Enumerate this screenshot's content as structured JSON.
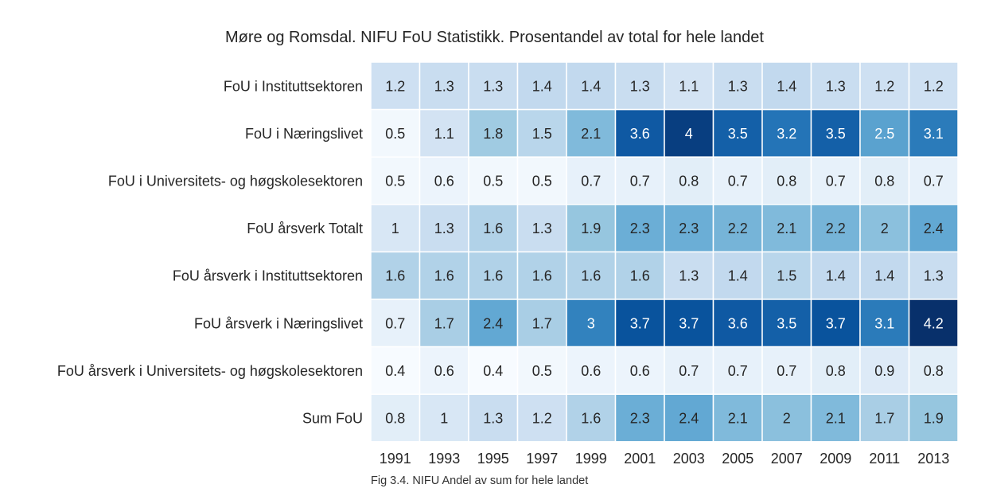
{
  "chart_data": {
    "type": "heatmap",
    "title": "Møre og Romsdal. NIFU FoU Statistikk. Prosentandel av total for hele landet",
    "caption": "Fig 3.4. NIFU Andel av sum for hele landet",
    "x": [
      "1991",
      "1993",
      "1995",
      "1997",
      "1999",
      "2001",
      "2003",
      "2005",
      "2007",
      "2009",
      "2011",
      "2013"
    ],
    "rows": [
      "FoU i Instituttsektoren",
      "FoU i Næringslivet",
      "FoU i Universitets- og høgskolesektoren",
      "FoU årsverk Totalt",
      "FoU årsverk i Instituttsektoren",
      "FoU årsverk i Næringslivet",
      "FoU årsverk i Universitets- og høgskolesektoren",
      "Sum FoU"
    ],
    "values": [
      [
        1.2,
        1.3,
        1.3,
        1.4,
        1.4,
        1.3,
        1.1,
        1.3,
        1.4,
        1.3,
        1.2,
        1.2
      ],
      [
        0.5,
        1.1,
        1.8,
        1.5,
        2.1,
        3.6,
        4,
        3.5,
        3.2,
        3.5,
        2.5,
        3.1
      ],
      [
        0.5,
        0.6,
        0.5,
        0.5,
        0.7,
        0.7,
        0.8,
        0.7,
        0.8,
        0.7,
        0.8,
        0.7
      ],
      [
        1,
        1.3,
        1.6,
        1.3,
        1.9,
        2.3,
        2.3,
        2.2,
        2.1,
        2.2,
        2,
        2.4
      ],
      [
        1.6,
        1.6,
        1.6,
        1.6,
        1.6,
        1.6,
        1.3,
        1.4,
        1.5,
        1.4,
        1.4,
        1.3
      ],
      [
        0.7,
        1.7,
        2.4,
        1.7,
        3,
        3.7,
        3.7,
        3.6,
        3.5,
        3.7,
        3.1,
        4.2
      ],
      [
        0.4,
        0.6,
        0.4,
        0.5,
        0.6,
        0.6,
        0.7,
        0.7,
        0.7,
        0.8,
        0.9,
        0.8
      ],
      [
        0.8,
        1,
        1.3,
        1.2,
        1.6,
        2.3,
        2.4,
        2.1,
        2,
        2.1,
        1.7,
        1.9
      ]
    ],
    "colormap": "Blues",
    "vmin": 0.4,
    "vmax": 4.2,
    "grid": false,
    "legend": "none"
  }
}
